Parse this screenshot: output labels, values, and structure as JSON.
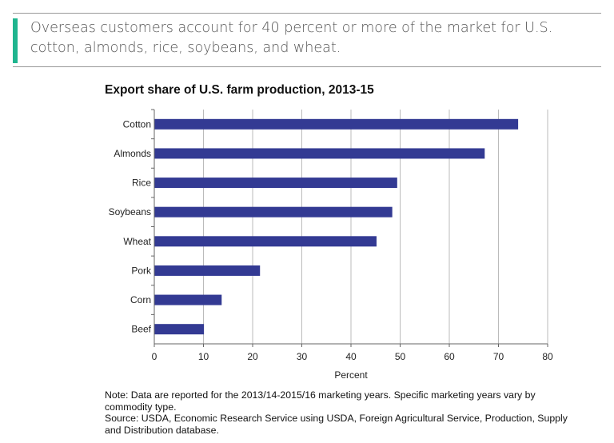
{
  "callout": {
    "text": "Overseas customers account for 40 percent or more of the market for U.S. cotton, almonds, rice, soybeans, and wheat.",
    "accent_color": "#1fb58f"
  },
  "chart_data": {
    "type": "bar",
    "orientation": "horizontal",
    "title": "Export share of U.S. farm production, 2013-15",
    "xlabel": "Percent",
    "ylabel": "",
    "categories": [
      "Cotton",
      "Almonds",
      "Rice",
      "Soybeans",
      "Wheat",
      "Pork",
      "Corn",
      "Beef"
    ],
    "values": [
      74.0,
      67.2,
      49.4,
      48.4,
      45.2,
      21.5,
      13.7,
      10.1
    ],
    "xlim": [
      0,
      80
    ],
    "xticks": [
      "0",
      "10",
      "20",
      "30",
      "40",
      "50",
      "60",
      "70",
      "80"
    ],
    "grid": "vertical",
    "bar_color": "#333a93"
  },
  "notes": {
    "note": "Note: Data are reported for the 2013/14-2015/16 marketing years. Specific marketing years vary by commodity type.",
    "source": "Source: USDA, Economic Research Service using USDA, Foreign Agricultural Service, Production, Supply and Distribution database."
  }
}
